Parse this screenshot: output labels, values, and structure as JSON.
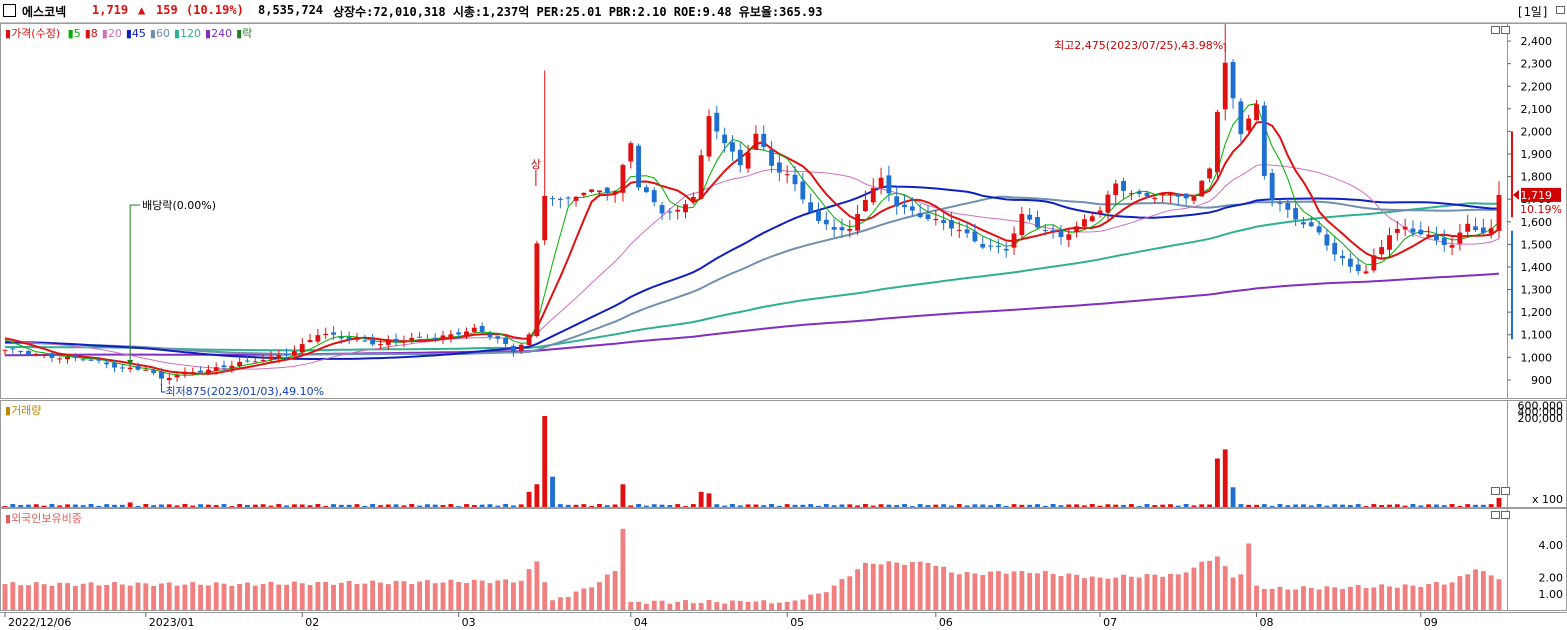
{
  "header": {
    "name": "에스코넥",
    "price": "1,719",
    "arrow": "▲",
    "change": "159",
    "change_pct": "(10.19%)",
    "volume": "8,535,724",
    "stats": "상장수:72,010,318 시총:1,237억 PER:25.01 PBR:2.10 ROE:9.48 유보율:365.93",
    "period": "[1일]"
  },
  "legend": {
    "price_label": "가격(수정)",
    "ma": [
      {
        "label": "5",
        "color": "#00b000"
      },
      {
        "label": "8",
        "color": "#e01010"
      },
      {
        "label": "20",
        "color": "#d070c0"
      },
      {
        "label": "45",
        "color": "#1020c0"
      },
      {
        "label": "60",
        "color": "#7090b0"
      },
      {
        "label": "120",
        "color": "#30b090"
      },
      {
        "label": "240",
        "color": "#8030c0"
      },
      {
        "label": "락",
        "color": "#208020"
      }
    ],
    "volume_label": "거래량",
    "foreign_label": "외국인보유비중"
  },
  "annotations": {
    "high": "최고2,475(2023/07/25),43.98%",
    "low": "최저875(2023/01/03),49.10%",
    "dividend": "배당락(0.00%)",
    "upper_limit": "상",
    "current_price": "1,719",
    "current_pct": "10.19%"
  },
  "colors": {
    "up": "#e01010",
    "down": "#1f6fd0",
    "foreign_bar": "#f08080"
  },
  "chart_data": [
    {
      "type": "candlestick",
      "title": "",
      "ylim": [
        820,
        2480
      ],
      "y_ticks": [
        "2,400",
        "2,300",
        "2,200",
        "2,100",
        "2,000",
        "1,900",
        "1,800",
        "1,700",
        "1,600",
        "1,500",
        "1,400",
        "1,300",
        "1,200",
        "1,100",
        "1,000",
        "900"
      ],
      "x_ticks": [
        "2022/12/06",
        "2023/01",
        "02",
        "03",
        "04",
        "05",
        "06",
        "07",
        "08",
        "09"
      ],
      "x_tick_index": [
        0,
        18,
        38,
        58,
        80,
        100,
        119,
        140,
        160,
        181
      ],
      "close_anchors": [
        [
          0,
          1030
        ],
        [
          10,
          990
        ],
        [
          15,
          955
        ],
        [
          18,
          950
        ],
        [
          20,
          900
        ],
        [
          23,
          930
        ],
        [
          28,
          960
        ],
        [
          33,
          990
        ],
        [
          37,
          1030
        ],
        [
          40,
          1100
        ],
        [
          45,
          1080
        ],
        [
          48,
          1060
        ],
        [
          52,
          1080
        ],
        [
          55,
          1090
        ],
        [
          60,
          1120
        ],
        [
          63,
          1080
        ],
        [
          65,
          1030
        ],
        [
          67,
          1100
        ],
        [
          68,
          1500
        ],
        [
          69,
          1720
        ],
        [
          71,
          1680
        ],
        [
          73,
          1720
        ],
        [
          76,
          1750
        ],
        [
          78,
          1730
        ],
        [
          80,
          1950
        ],
        [
          81,
          1750
        ],
        [
          84,
          1650
        ],
        [
          86,
          1650
        ],
        [
          88,
          1720
        ],
        [
          90,
          2050
        ],
        [
          92,
          1950
        ],
        [
          94,
          1850
        ],
        [
          96,
          2000
        ],
        [
          98,
          1850
        ],
        [
          100,
          1800
        ],
        [
          102,
          1700
        ],
        [
          104,
          1600
        ],
        [
          106,
          1580
        ],
        [
          108,
          1560
        ],
        [
          110,
          1700
        ],
        [
          112,
          1780
        ],
        [
          114,
          1680
        ],
        [
          116,
          1650
        ],
        [
          119,
          1600
        ],
        [
          122,
          1560
        ],
        [
          125,
          1500
        ],
        [
          128,
          1480
        ],
        [
          130,
          1620
        ],
        [
          133,
          1560
        ],
        [
          135,
          1540
        ],
        [
          137,
          1580
        ],
        [
          140,
          1650
        ],
        [
          142,
          1760
        ],
        [
          145,
          1720
        ],
        [
          148,
          1720
        ],
        [
          152,
          1700
        ],
        [
          154,
          1850
        ],
        [
          155,
          2100
        ],
        [
          156,
          2300
        ],
        [
          157,
          2150
        ],
        [
          158,
          2000
        ],
        [
          159,
          2050
        ],
        [
          160,
          2100
        ],
        [
          161,
          1800
        ],
        [
          162,
          1700
        ],
        [
          164,
          1650
        ],
        [
          166,
          1600
        ],
        [
          168,
          1550
        ],
        [
          170,
          1450
        ],
        [
          172,
          1400
        ],
        [
          174,
          1380
        ],
        [
          175,
          1450
        ],
        [
          177,
          1550
        ],
        [
          179,
          1570
        ],
        [
          181,
          1540
        ],
        [
          183,
          1520
        ],
        [
          185,
          1500
        ],
        [
          187,
          1600
        ],
        [
          189,
          1540
        ],
        [
          190,
          1560
        ],
        [
          191,
          1719
        ]
      ],
      "series": [
        {
          "name": "5",
          "color": "#00b000",
          "period": 5
        },
        {
          "name": "8",
          "color": "#e01010",
          "period": 8
        },
        {
          "name": "20",
          "color": "#d070c0",
          "period": 20
        },
        {
          "name": "45",
          "color": "#1020c0",
          "period": 45
        },
        {
          "name": "60",
          "color": "#7090b0",
          "period": 60
        },
        {
          "name": "120",
          "color": "#30b090",
          "period": 120
        },
        {
          "name": "240",
          "color": "#8030c0",
          "period": 240
        }
      ]
    },
    {
      "type": "bar",
      "title": "",
      "ylim": [
        0,
        620000
      ],
      "y_ticks": [
        "600,000",
        "400,000",
        "200,000",
        "x 100"
      ],
      "spikes": [
        [
          16,
          30000
        ],
        [
          67,
          100000
        ],
        [
          68,
          150000
        ],
        [
          69,
          600000
        ],
        [
          70,
          200000
        ],
        [
          79,
          150000
        ],
        [
          89,
          100000
        ],
        [
          90,
          90000
        ],
        [
          155,
          320000
        ],
        [
          156,
          380000
        ],
        [
          157,
          130000
        ],
        [
          191,
          60000
        ]
      ]
    },
    {
      "type": "bar",
      "title": "",
      "ylim": [
        0,
        5.3
      ],
      "y_ticks": [
        "4.00",
        "2.00",
        "1.00"
      ],
      "anchors": [
        [
          0,
          1.6
        ],
        [
          30,
          1.6
        ],
        [
          66,
          1.8
        ],
        [
          68,
          3.0
        ],
        [
          70,
          0.6
        ],
        [
          75,
          1.4
        ],
        [
          78,
          2.4
        ],
        [
          79,
          5.0
        ],
        [
          80,
          0.5
        ],
        [
          95,
          0.5
        ],
        [
          100,
          0.5
        ],
        [
          105,
          1.1
        ],
        [
          110,
          2.9
        ],
        [
          118,
          2.9
        ],
        [
          122,
          2.2
        ],
        [
          130,
          2.4
        ],
        [
          140,
          2.0
        ],
        [
          150,
          2.2
        ],
        [
          155,
          3.3
        ],
        [
          156,
          2.7
        ],
        [
          157,
          2.0
        ],
        [
          158,
          2.2
        ],
        [
          159,
          4.1
        ],
        [
          160,
          1.5
        ],
        [
          162,
          1.3
        ],
        [
          170,
          1.4
        ],
        [
          180,
          1.5
        ],
        [
          185,
          1.7
        ],
        [
          188,
          2.5
        ],
        [
          191,
          1.9
        ]
      ]
    }
  ]
}
